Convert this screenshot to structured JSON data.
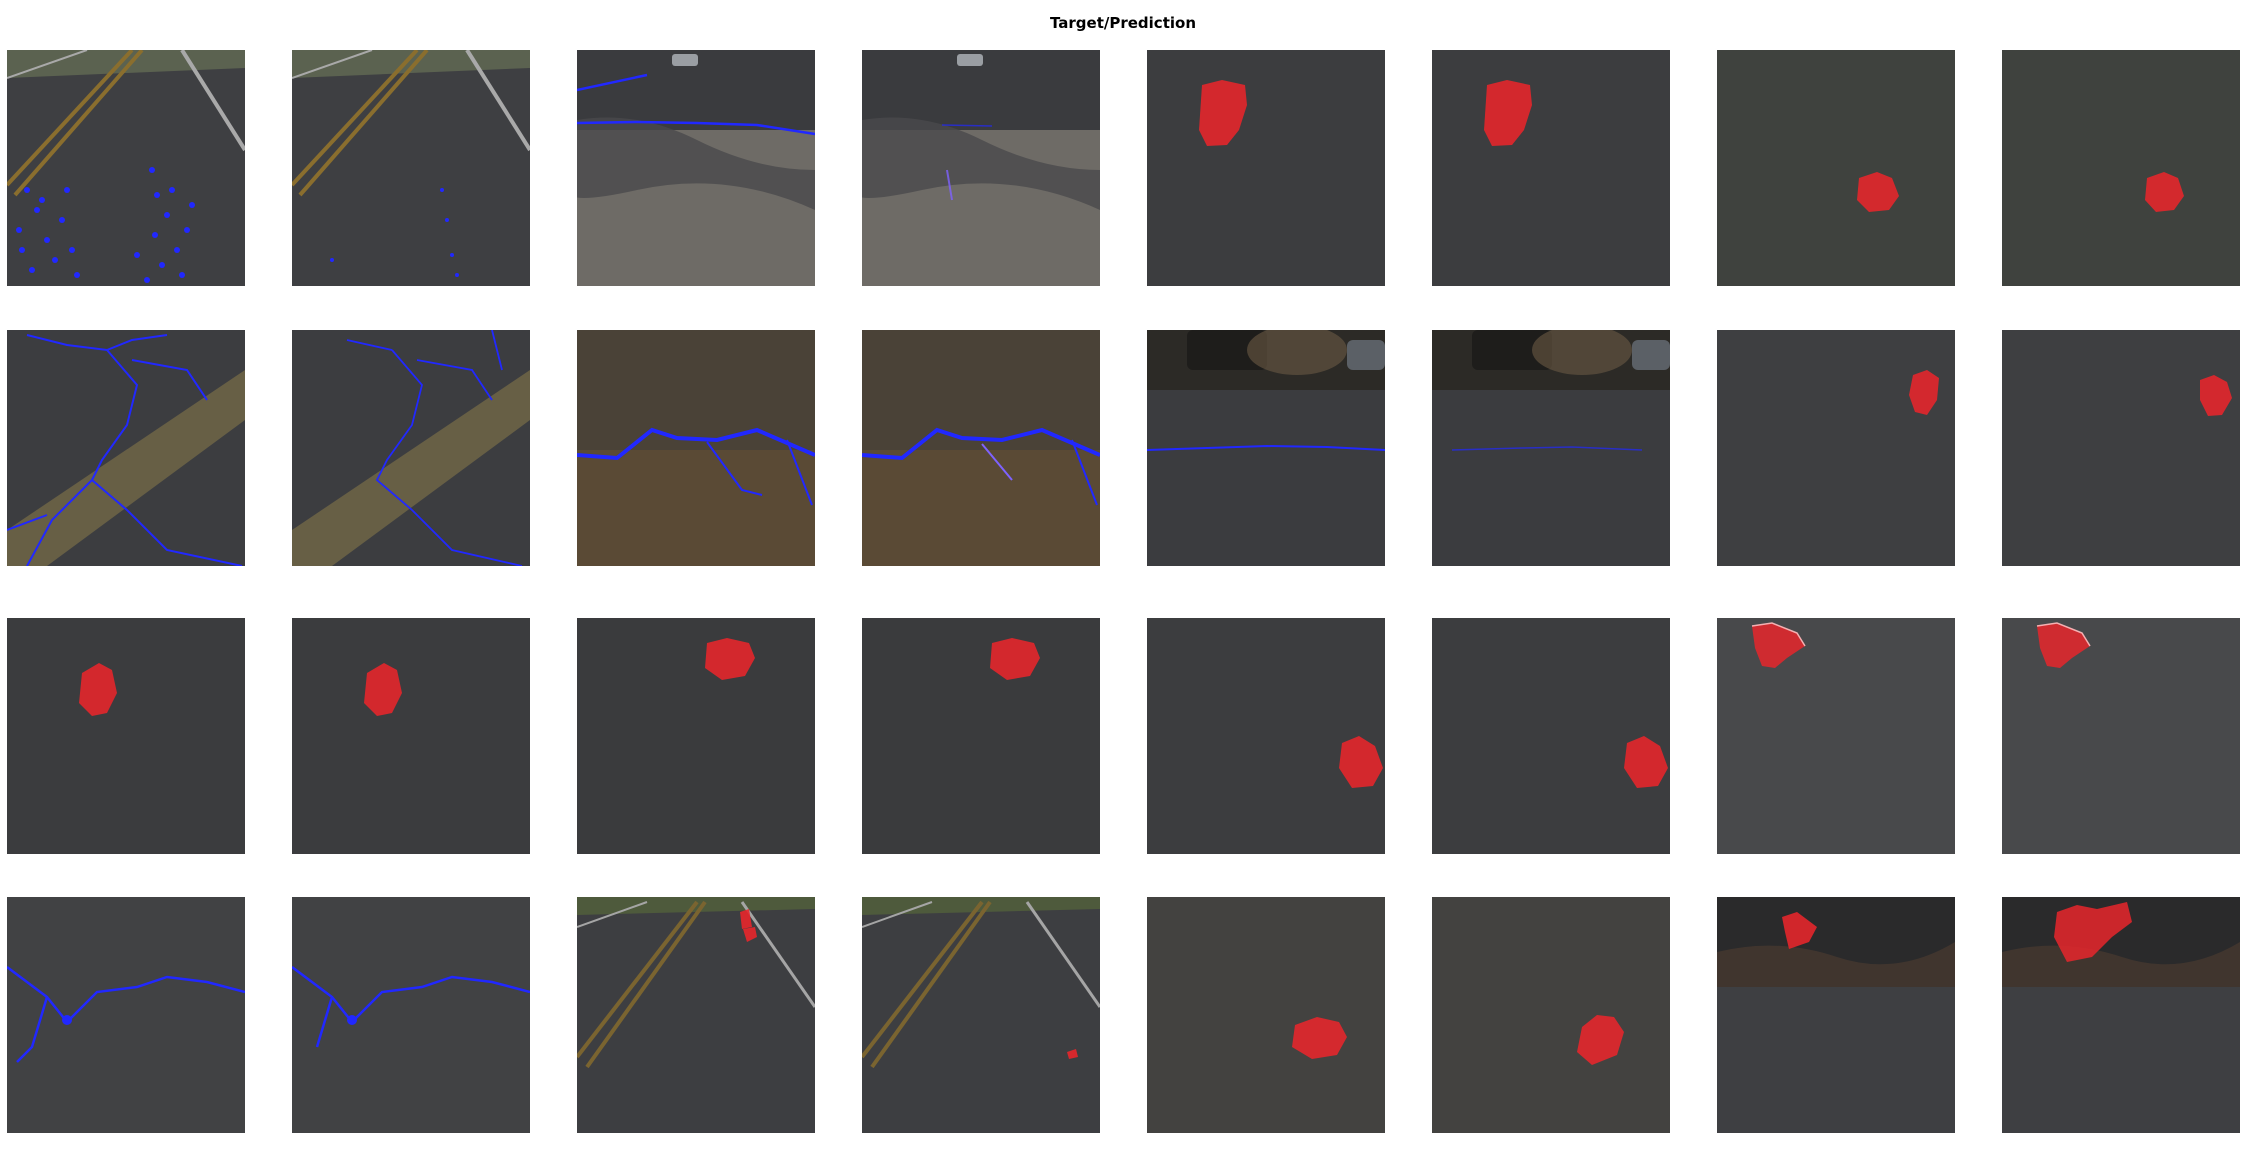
{
  "figure": {
    "title": "Target/Prediction",
    "colors": {
      "pothole_mask": "#e8262b",
      "crack_mask": "#2128ff"
    }
  },
  "tiles": [
    {
      "row": 0,
      "col": 0,
      "role": "target",
      "scene": "road-lanes",
      "defect": "crack",
      "extent": "dense"
    },
    {
      "row": 0,
      "col": 1,
      "role": "prediction",
      "scene": "road-lanes",
      "defect": "crack",
      "extent": "sparse"
    },
    {
      "row": 0,
      "col": 2,
      "role": "target",
      "scene": "shadowed-road",
      "defect": "crack",
      "extent": "line"
    },
    {
      "row": 0,
      "col": 3,
      "role": "prediction",
      "scene": "shadowed-road",
      "defect": "crack",
      "extent": "faint"
    },
    {
      "row": 0,
      "col": 4,
      "role": "target",
      "scene": "asphalt",
      "defect": "pothole"
    },
    {
      "row": 0,
      "col": 5,
      "role": "prediction",
      "scene": "asphalt",
      "defect": "pothole"
    },
    {
      "row": 0,
      "col": 6,
      "role": "target",
      "scene": "asphalt-green",
      "defect": "pothole"
    },
    {
      "row": 0,
      "col": 7,
      "role": "prediction",
      "scene": "asphalt-green",
      "defect": "pothole"
    },
    {
      "row": 1,
      "col": 0,
      "role": "target",
      "scene": "asphalt-stripe",
      "defect": "crack",
      "extent": "branching"
    },
    {
      "row": 1,
      "col": 1,
      "role": "prediction",
      "scene": "asphalt-stripe",
      "defect": "crack",
      "extent": "branching"
    },
    {
      "row": 1,
      "col": 2,
      "role": "target",
      "scene": "brown-asphalt",
      "defect": "crack",
      "extent": "wide"
    },
    {
      "row": 1,
      "col": 3,
      "role": "prediction",
      "scene": "brown-asphalt",
      "defect": "crack",
      "extent": "wide"
    },
    {
      "row": 1,
      "col": 4,
      "role": "target",
      "scene": "road-vehicles",
      "defect": "crack",
      "extent": "transverse"
    },
    {
      "row": 1,
      "col": 5,
      "role": "prediction",
      "scene": "road-vehicles",
      "defect": "crack",
      "extent": "transverse-faint"
    },
    {
      "row": 1,
      "col": 6,
      "role": "target",
      "scene": "asphalt",
      "defect": "pothole"
    },
    {
      "row": 1,
      "col": 7,
      "role": "prediction",
      "scene": "asphalt",
      "defect": "pothole"
    },
    {
      "row": 2,
      "col": 0,
      "role": "target",
      "scene": "asphalt",
      "defect": "pothole"
    },
    {
      "row": 2,
      "col": 1,
      "role": "prediction",
      "scene": "asphalt",
      "defect": "pothole"
    },
    {
      "row": 2,
      "col": 2,
      "role": "target",
      "scene": "asphalt",
      "defect": "pothole"
    },
    {
      "row": 2,
      "col": 3,
      "role": "prediction",
      "scene": "asphalt",
      "defect": "pothole"
    },
    {
      "row": 2,
      "col": 4,
      "role": "target",
      "scene": "asphalt",
      "defect": "pothole"
    },
    {
      "row": 2,
      "col": 5,
      "role": "prediction",
      "scene": "asphalt",
      "defect": "pothole"
    },
    {
      "row": 2,
      "col": 6,
      "role": "target",
      "scene": "coarse-asphalt",
      "defect": "pothole"
    },
    {
      "row": 2,
      "col": 7,
      "role": "prediction",
      "scene": "coarse-asphalt",
      "defect": "pothole"
    },
    {
      "row": 3,
      "col": 0,
      "role": "target",
      "scene": "gravel-asphalt",
      "defect": "crack",
      "extent": "longitudinal"
    },
    {
      "row": 3,
      "col": 1,
      "role": "prediction",
      "scene": "gravel-asphalt",
      "defect": "crack",
      "extent": "longitudinal"
    },
    {
      "row": 3,
      "col": 2,
      "role": "target",
      "scene": "road-lanes-far",
      "defect": "pothole",
      "extent": "small"
    },
    {
      "row": 3,
      "col": 3,
      "role": "prediction",
      "scene": "road-lanes-far",
      "defect": "pothole",
      "extent": "tiny"
    },
    {
      "row": 3,
      "col": 4,
      "role": "target",
      "scene": "asphalt",
      "defect": "pothole"
    },
    {
      "row": 3,
      "col": 5,
      "role": "prediction",
      "scene": "asphalt",
      "defect": "pothole"
    },
    {
      "row": 3,
      "col": 6,
      "role": "target",
      "scene": "pothole-edge",
      "defect": "pothole"
    },
    {
      "row": 3,
      "col": 7,
      "role": "prediction",
      "scene": "pothole-edge",
      "defect": "pothole",
      "extent": "large"
    }
  ]
}
